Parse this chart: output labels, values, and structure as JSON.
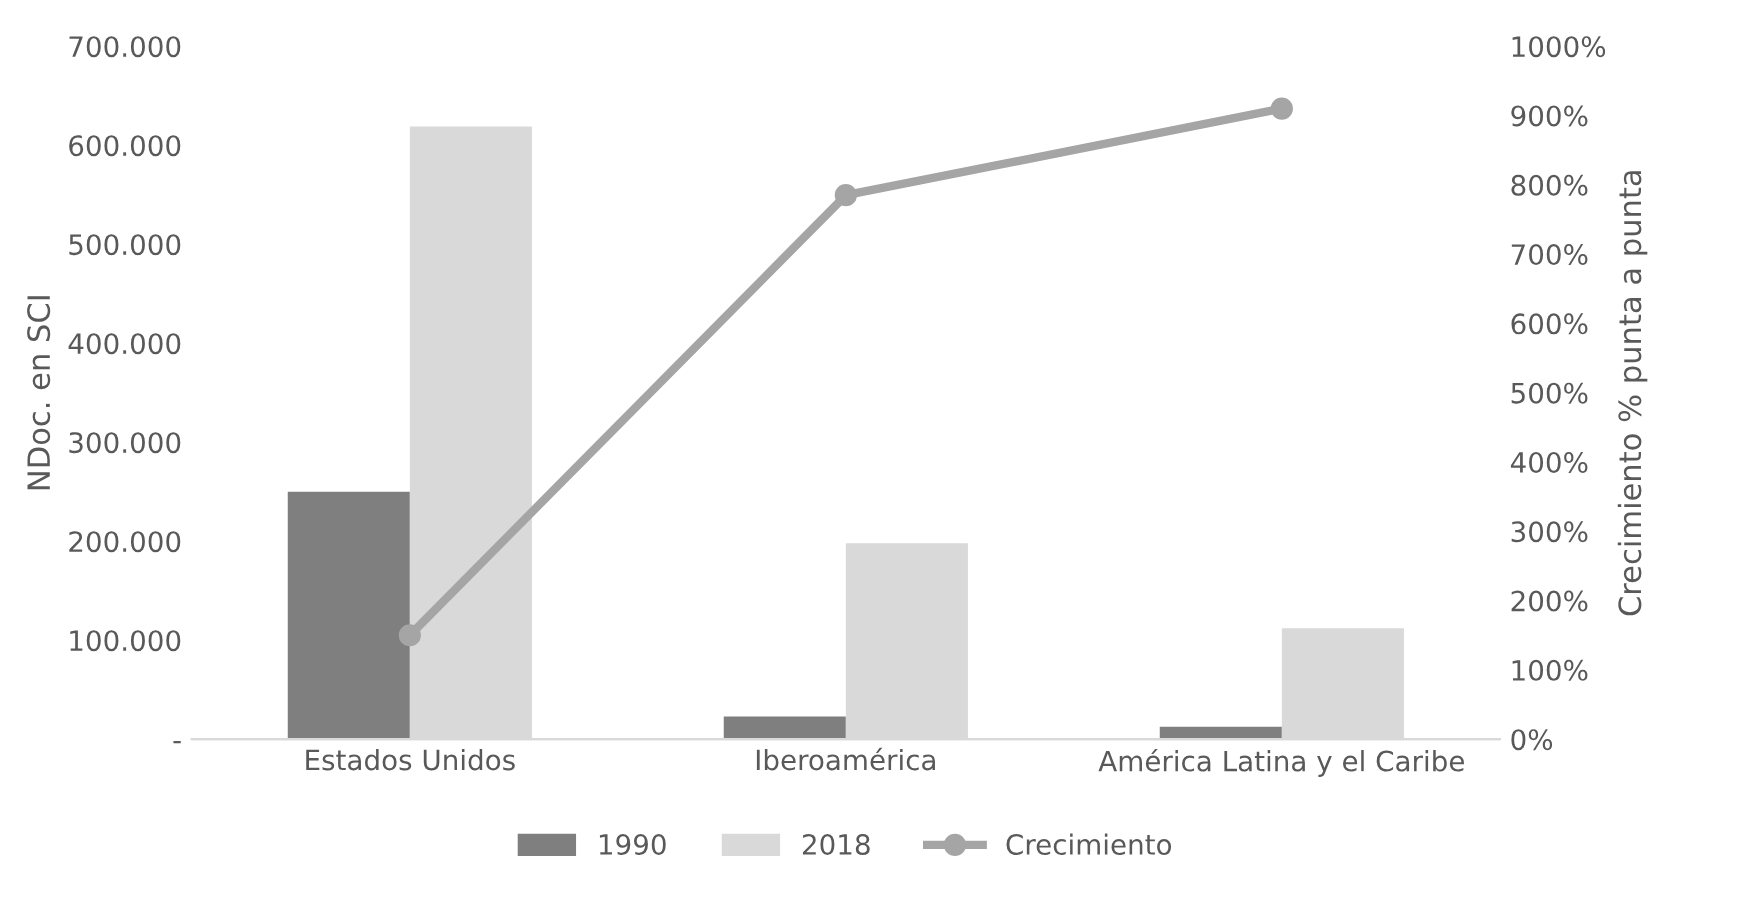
{
  "chart_data": {
    "type": "bar",
    "ylabel": "NDoc. en SCI",
    "y2label": "Crecimiento % punta a punta",
    "categories": [
      "Estados Unidos",
      "Iberoamérica",
      "América Latina y el Caribe"
    ],
    "series": [
      {
        "name": "1990",
        "color": "#7f7f7f",
        "values": [
          250000,
          23000,
          12500
        ]
      },
      {
        "name": "2018",
        "color": "#d9d9d9",
        "values": [
          619000,
          198000,
          112000
        ]
      },
      {
        "name": "Crecimiento",
        "type": "line",
        "axis": "y2",
        "color": "#a5a5a5",
        "marker": "circle",
        "values": [
          150,
          785,
          910
        ]
      }
    ],
    "ylim": [
      0,
      700000
    ],
    "yticks": [
      {
        "value": 0,
        "label": "-"
      },
      {
        "value": 100000,
        "label": "100.000"
      },
      {
        "value": 200000,
        "label": "200.000"
      },
      {
        "value": 300000,
        "label": "300.000"
      },
      {
        "value": 400000,
        "label": "400.000"
      },
      {
        "value": 500000,
        "label": "500.000"
      },
      {
        "value": 600000,
        "label": "600.000"
      },
      {
        "value": 700000,
        "label": "700.000"
      }
    ],
    "y2lim": [
      0,
      1000
    ],
    "y2ticks": [
      {
        "value": 0,
        "label": "0%"
      },
      {
        "value": 100,
        "label": "100%"
      },
      {
        "value": 200,
        "label": "200%"
      },
      {
        "value": 300,
        "label": "300%"
      },
      {
        "value": 400,
        "label": "400%"
      },
      {
        "value": 500,
        "label": "500%"
      },
      {
        "value": 600,
        "label": "600%"
      },
      {
        "value": 700,
        "label": "700%"
      },
      {
        "value": 800,
        "label": "800%"
      },
      {
        "value": 900,
        "label": "900%"
      },
      {
        "value": 1000,
        "label": "1000%"
      }
    ],
    "grid": false,
    "legend": "bottom"
  }
}
